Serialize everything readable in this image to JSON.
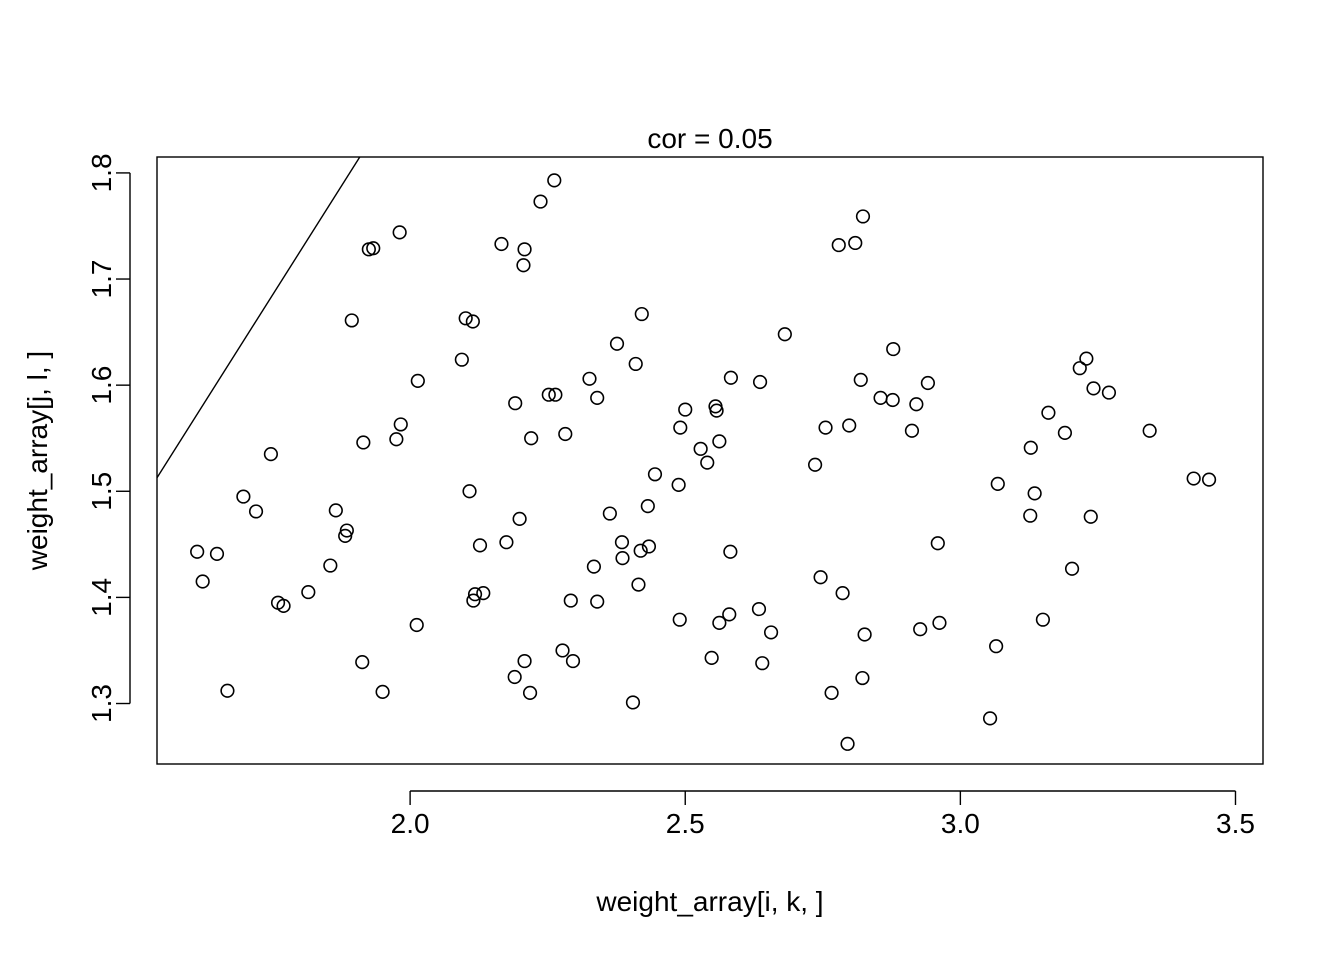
{
  "chart_data": {
    "type": "scatter",
    "title": "cor = 0.05",
    "xlabel": "weight_array[i, k, ]",
    "ylabel": "weight_array[j, l, ]",
    "xlim": [
      1.54,
      3.55
    ],
    "ylim": [
      1.243,
      1.815
    ],
    "xticks": [
      2.0,
      2.5,
      3.0,
      3.5
    ],
    "xtick_labels": [
      "2.0",
      "2.5",
      "3.0",
      "3.5"
    ],
    "yticks": [
      1.3,
      1.4,
      1.5,
      1.6,
      1.7,
      1.8
    ],
    "ytick_labels": [
      "1.3",
      "1.4",
      "1.5",
      "1.6",
      "1.7",
      "1.8"
    ],
    "grid": false,
    "legend": "none",
    "line": {
      "intercept": 0.25,
      "slope": 0.82
    },
    "x": [
      1.613,
      1.623,
      1.649,
      1.668,
      1.697,
      1.72,
      1.747,
      1.76,
      1.77,
      1.815,
      1.855,
      1.865,
      1.882,
      1.885,
      1.894,
      1.913,
      1.915,
      1.925,
      1.933,
      1.95,
      1.975,
      1.981,
      1.983,
      2.012,
      2.014,
      2.094,
      2.101,
      2.108,
      2.114,
      2.115,
      2.118,
      2.127,
      2.133,
      2.166,
      2.175,
      2.19,
      2.191,
      2.199,
      2.206,
      2.208,
      2.208,
      2.218,
      2.22,
      2.237,
      2.252,
      2.262,
      2.264,
      2.277,
      2.282,
      2.292,
      2.296,
      2.326,
      2.334,
      2.34,
      2.34,
      2.363,
      2.376,
      2.385,
      2.386,
      2.405,
      2.41,
      2.415,
      2.419,
      2.421,
      2.432,
      2.434,
      2.445,
      2.488,
      2.49,
      2.491,
      2.5,
      2.528,
      2.54,
      2.548,
      2.555,
      2.557,
      2.562,
      2.562,
      2.58,
      2.582,
      2.583,
      2.634,
      2.636,
      2.64,
      2.656,
      2.681,
      2.736,
      2.746,
      2.755,
      2.766,
      2.779,
      2.786,
      2.795,
      2.798,
      2.809,
      2.819,
      2.822,
      2.823,
      2.826,
      2.855,
      2.877,
      2.878,
      2.912,
      2.92,
      2.927,
      2.941,
      2.959,
      2.962,
      3.054,
      3.065,
      3.068,
      3.127,
      3.128,
      3.135,
      3.15,
      3.16,
      3.19,
      3.203,
      3.217,
      3.229,
      3.237,
      3.242,
      3.27,
      3.344,
      3.424,
      3.452
    ],
    "y": [
      1.443,
      1.415,
      1.441,
      1.312,
      1.495,
      1.481,
      1.535,
      1.395,
      1.392,
      1.405,
      1.43,
      1.482,
      1.458,
      1.463,
      1.661,
      1.339,
      1.546,
      1.728,
      1.729,
      1.311,
      1.549,
      1.744,
      1.563,
      1.374,
      1.604,
      1.624,
      1.663,
      1.5,
      1.66,
      1.397,
      1.403,
      1.449,
      1.404,
      1.733,
      1.452,
      1.325,
      1.583,
      1.474,
      1.713,
      1.728,
      1.34,
      1.31,
      1.55,
      1.773,
      1.591,
      1.793,
      1.591,
      1.35,
      1.554,
      1.397,
      1.34,
      1.606,
      1.429,
      1.396,
      1.588,
      1.479,
      1.639,
      1.452,
      1.437,
      1.301,
      1.62,
      1.412,
      1.444,
      1.667,
      1.486,
      1.448,
      1.516,
      1.506,
      1.379,
      1.56,
      1.577,
      1.54,
      1.527,
      1.343,
      1.58,
      1.576,
      1.376,
      1.547,
      1.384,
      1.443,
      1.607,
      1.389,
      1.603,
      1.338,
      1.367,
      1.648,
      1.525,
      1.419,
      1.56,
      1.31,
      1.732,
      1.404,
      1.262,
      1.562,
      1.734,
      1.605,
      1.324,
      1.759,
      1.365,
      1.588,
      1.586,
      1.634,
      1.557,
      1.582,
      1.37,
      1.602,
      1.451,
      1.376,
      1.286,
      1.354,
      1.507,
      1.477,
      1.541,
      1.498,
      1.379,
      1.574,
      1.555,
      1.427,
      1.616,
      1.625,
      1.476,
      1.597,
      1.593,
      1.557,
      1.512,
      1.511
    ]
  }
}
